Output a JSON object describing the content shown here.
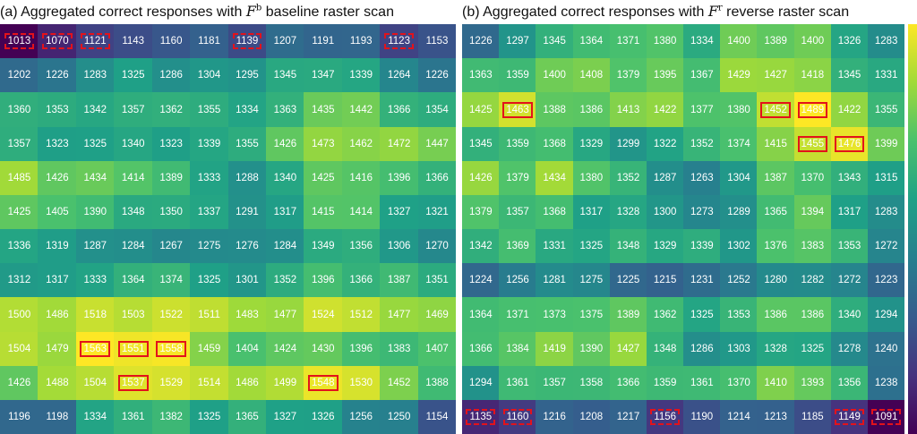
{
  "colormap": [
    "#440154",
    "#46327e",
    "#365c8d",
    "#277f8e",
    "#1fa187",
    "#4ac16d",
    "#a0da39",
    "#fde725"
  ],
  "highlight_color": "#e3121b",
  "chart_data": [
    {
      "type": "heatmap",
      "panel": "a",
      "title_parts": {
        "pre": "(a) Aggregated correct responses with ",
        "symbol": "F",
        "superscript": "b",
        "post": " baseline raster scan"
      },
      "rows": 12,
      "cols": 12,
      "vmin": 1013,
      "vmax": 1563,
      "values": [
        [
          1013,
          1070,
          1121,
          1143,
          1160,
          1181,
          1139,
          1207,
          1191,
          1193,
          1123,
          1153
        ],
        [
          1202,
          1226,
          1283,
          1325,
          1286,
          1304,
          1295,
          1345,
          1347,
          1339,
          1264,
          1226
        ],
        [
          1360,
          1353,
          1342,
          1357,
          1362,
          1355,
          1334,
          1363,
          1435,
          1442,
          1366,
          1354
        ],
        [
          1357,
          1323,
          1325,
          1340,
          1323,
          1339,
          1355,
          1426,
          1473,
          1462,
          1472,
          1447
        ],
        [
          1485,
          1426,
          1434,
          1414,
          1389,
          1333,
          1288,
          1340,
          1425,
          1416,
          1396,
          1366
        ],
        [
          1425,
          1405,
          1390,
          1348,
          1350,
          1337,
          1291,
          1317,
          1415,
          1414,
          1327,
          1321
        ],
        [
          1336,
          1319,
          1287,
          1284,
          1267,
          1275,
          1276,
          1284,
          1349,
          1356,
          1306,
          1270
        ],
        [
          1312,
          1317,
          1333,
          1364,
          1374,
          1325,
          1301,
          1352,
          1396,
          1366,
          1387,
          1351
        ],
        [
          1500,
          1486,
          1518,
          1503,
          1522,
          1511,
          1483,
          1477,
          1524,
          1512,
          1477,
          1469
        ],
        [
          1504,
          1479,
          1563,
          1551,
          1558,
          1459,
          1404,
          1424,
          1430,
          1396,
          1383,
          1407
        ],
        [
          1426,
          1488,
          1504,
          1537,
          1529,
          1514,
          1486,
          1499,
          1548,
          1530,
          1452,
          1388
        ],
        [
          1196,
          1198,
          1334,
          1361,
          1382,
          1325,
          1365,
          1327,
          1326,
          1256,
          1250,
          1154
        ]
      ],
      "solid_boxes": [
        [
          9,
          2
        ],
        [
          9,
          3
        ],
        [
          9,
          4
        ],
        [
          10,
          3
        ],
        [
          10,
          8
        ]
      ],
      "dashed_boxes": [
        [
          0,
          0
        ],
        [
          0,
          1
        ],
        [
          0,
          2
        ],
        [
          0,
          6
        ],
        [
          0,
          10
        ]
      ]
    },
    {
      "type": "heatmap",
      "panel": "b",
      "title_parts": {
        "pre": "(b) Aggregated correct responses with ",
        "symbol": "F",
        "superscript": "r",
        "post": " reverse raster scan"
      },
      "rows": 12,
      "cols": 12,
      "vmin": 1091,
      "vmax": 1489,
      "values": [
        [
          1226,
          1297,
          1345,
          1364,
          1371,
          1380,
          1334,
          1400,
          1389,
          1400,
          1326,
          1283
        ],
        [
          1363,
          1359,
          1400,
          1408,
          1379,
          1395,
          1367,
          1429,
          1427,
          1418,
          1345,
          1331
        ],
        [
          1425,
          1463,
          1388,
          1386,
          1413,
          1422,
          1377,
          1380,
          1452,
          1489,
          1422,
          1355
        ],
        [
          1345,
          1359,
          1368,
          1329,
          1299,
          1322,
          1352,
          1374,
          1415,
          1455,
          1476,
          1399
        ],
        [
          1426,
          1379,
          1434,
          1380,
          1352,
          1287,
          1263,
          1304,
          1387,
          1370,
          1343,
          1315
        ],
        [
          1379,
          1357,
          1368,
          1317,
          1328,
          1300,
          1273,
          1289,
          1365,
          1394,
          1317,
          1283
        ],
        [
          1342,
          1369,
          1331,
          1325,
          1348,
          1329,
          1339,
          1302,
          1376,
          1383,
          1353,
          1272
        ],
        [
          1224,
          1256,
          1281,
          1275,
          1225,
          1215,
          1231,
          1252,
          1280,
          1282,
          1272,
          1223
        ],
        [
          1364,
          1371,
          1373,
          1375,
          1389,
          1362,
          1325,
          1353,
          1386,
          1386,
          1340,
          1294
        ],
        [
          1366,
          1384,
          1419,
          1390,
          1427,
          1348,
          1286,
          1303,
          1328,
          1325,
          1278,
          1240
        ],
        [
          1294,
          1361,
          1357,
          1358,
          1366,
          1359,
          1361,
          1370,
          1410,
          1393,
          1356,
          1238
        ],
        [
          1135,
          1160,
          1216,
          1208,
          1217,
          1156,
          1190,
          1214,
          1213,
          1185,
          1149,
          1091
        ]
      ],
      "solid_boxes": [
        [
          2,
          1
        ],
        [
          2,
          8
        ],
        [
          2,
          9
        ],
        [
          3,
          9
        ],
        [
          3,
          10
        ]
      ],
      "dashed_boxes": [
        [
          11,
          0
        ],
        [
          11,
          1
        ],
        [
          11,
          5
        ],
        [
          11,
          10
        ],
        [
          11,
          11
        ]
      ]
    }
  ]
}
